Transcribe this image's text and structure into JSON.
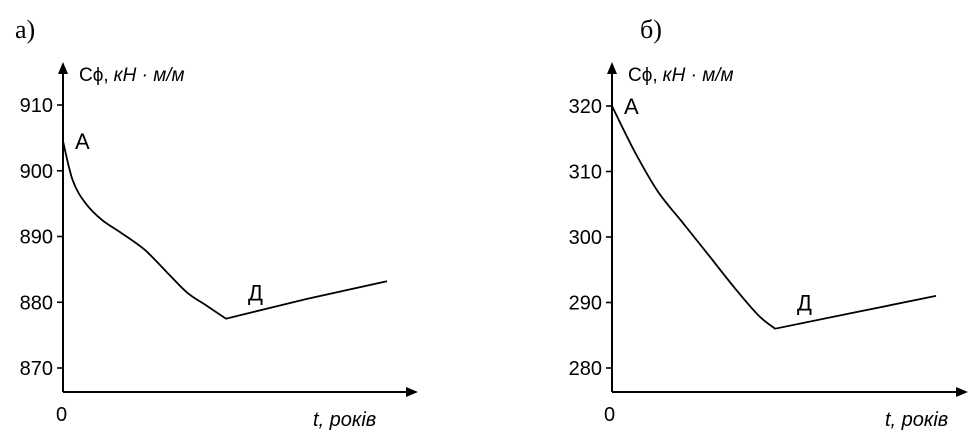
{
  "chart_data": [
    {
      "type": "line",
      "panel_label": "а)",
      "ylabel": {
        "symbol": "Cϕ,",
        "units": "кН · м/м"
      },
      "xlabel": "t, років",
      "origin_label": "0",
      "ylim": [
        865,
        915
      ],
      "yticks": [
        870,
        880,
        890,
        900,
        910
      ],
      "ytick_labels": [
        "870",
        "880",
        "890",
        "900",
        "910"
      ],
      "points": [
        {
          "label": "А",
          "t": 0,
          "value": 904.5
        },
        {
          "label": "Д",
          "t": 0.5,
          "value": 877.5
        }
      ],
      "series": [
        {
          "values": [
            [
              0,
              904.5
            ],
            [
              0.03,
              898.5
            ],
            [
              0.07,
              895
            ],
            [
              0.12,
              892.5
            ],
            [
              0.18,
              890.5
            ],
            [
              0.25,
              888
            ],
            [
              0.32,
              884.5
            ],
            [
              0.38,
              881.5
            ],
            [
              0.44,
              879.5
            ],
            [
              0.5,
              877.5
            ],
            [
              0.75,
              880.5
            ],
            [
              1.0,
              883.2
            ]
          ]
        }
      ]
    },
    {
      "type": "line",
      "panel_label": "б)",
      "ylabel": {
        "symbol": "Cϕ,",
        "units": "кН · м/м"
      },
      "xlabel": "t, років",
      "origin_label": "0",
      "ylim": [
        275,
        325
      ],
      "yticks": [
        280,
        290,
        300,
        310,
        320
      ],
      "ytick_labels": [
        "280",
        "290",
        "300",
        "310",
        "320"
      ],
      "points": [
        {
          "label": "А",
          "t": 0,
          "value": 320
        },
        {
          "label": "Д",
          "t": 0.5,
          "value": 286
        }
      ],
      "series": [
        {
          "values": [
            [
              0,
              320
            ],
            [
              0.07,
              313
            ],
            [
              0.14,
              307
            ],
            [
              0.22,
              302
            ],
            [
              0.3,
              297
            ],
            [
              0.38,
              292
            ],
            [
              0.45,
              288
            ],
            [
              0.5,
              286
            ],
            [
              0.75,
              288.5
            ],
            [
              1.0,
              291
            ]
          ]
        }
      ]
    }
  ]
}
